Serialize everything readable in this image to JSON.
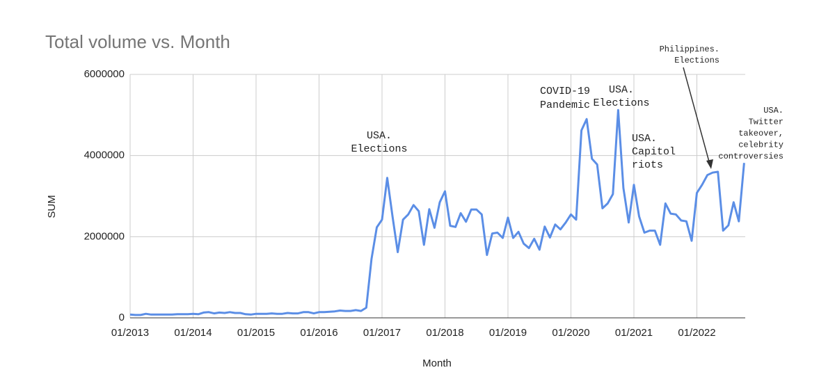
{
  "chart_data": {
    "type": "line",
    "title": "Total volume vs. Month",
    "x_label": "Month",
    "y_label": "SUM",
    "x": [
      "01/2013",
      "02/2013",
      "03/2013",
      "04/2013",
      "05/2013",
      "06/2013",
      "07/2013",
      "08/2013",
      "09/2013",
      "10/2013",
      "11/2013",
      "12/2013",
      "01/2014",
      "02/2014",
      "03/2014",
      "04/2014",
      "05/2014",
      "06/2014",
      "07/2014",
      "08/2014",
      "09/2014",
      "10/2014",
      "11/2014",
      "12/2014",
      "01/2015",
      "02/2015",
      "03/2015",
      "04/2015",
      "05/2015",
      "06/2015",
      "07/2015",
      "08/2015",
      "09/2015",
      "10/2015",
      "11/2015",
      "12/2015",
      "01/2016",
      "02/2016",
      "03/2016",
      "04/2016",
      "05/2016",
      "06/2016",
      "07/2016",
      "08/2016",
      "09/2016",
      "10/2016",
      "11/2016",
      "12/2016",
      "01/2017",
      "02/2017",
      "03/2017",
      "04/2017",
      "05/2017",
      "06/2017",
      "07/2017",
      "08/2017",
      "09/2017",
      "10/2017",
      "11/2017",
      "12/2017",
      "01/2018",
      "02/2018",
      "03/2018",
      "04/2018",
      "05/2018",
      "06/2018",
      "07/2018",
      "08/2018",
      "09/2018",
      "10/2018",
      "11/2018",
      "12/2018",
      "01/2019",
      "02/2019",
      "03/2019",
      "04/2019",
      "05/2019",
      "06/2019",
      "07/2019",
      "08/2019",
      "09/2019",
      "10/2019",
      "11/2019",
      "12/2019",
      "01/2020",
      "02/2020",
      "03/2020",
      "04/2020",
      "05/2020",
      "06/2020",
      "07/2020",
      "08/2020",
      "09/2020",
      "10/2020",
      "11/2020",
      "12/2020",
      "01/2021",
      "02/2021",
      "03/2021",
      "04/2021",
      "05/2021",
      "06/2021",
      "07/2021",
      "08/2021",
      "09/2021",
      "10/2021",
      "11/2021",
      "12/2021",
      "01/2022",
      "02/2022",
      "03/2022",
      "04/2022",
      "05/2022",
      "06/2022",
      "07/2022",
      "08/2022",
      "09/2022",
      "10/2022"
    ],
    "series": [
      {
        "name": "SUM",
        "color": "#5b8ee6",
        "values": [
          80000,
          70000,
          70000,
          100000,
          80000,
          80000,
          80000,
          80000,
          80000,
          90000,
          90000,
          90000,
          100000,
          90000,
          130000,
          140000,
          110000,
          130000,
          120000,
          140000,
          120000,
          120000,
          90000,
          80000,
          100000,
          100000,
          100000,
          110000,
          100000,
          100000,
          120000,
          110000,
          110000,
          140000,
          140000,
          110000,
          140000,
          140000,
          150000,
          160000,
          180000,
          170000,
          170000,
          190000,
          170000,
          250000,
          1450000,
          2230000,
          2420000,
          3450000,
          2500000,
          1620000,
          2420000,
          2550000,
          2780000,
          2630000,
          1800000,
          2680000,
          2220000,
          2850000,
          3120000,
          2270000,
          2240000,
          2580000,
          2370000,
          2670000,
          2670000,
          2550000,
          1550000,
          2080000,
          2100000,
          1970000,
          2470000,
          1970000,
          2120000,
          1830000,
          1720000,
          1950000,
          1680000,
          2250000,
          1980000,
          2300000,
          2180000,
          2350000,
          2550000,
          2420000,
          4620000,
          4900000,
          3920000,
          3780000,
          2700000,
          2820000,
          3050000,
          5120000,
          3200000,
          2350000,
          3280000,
          2500000,
          2100000,
          2150000,
          2150000,
          1800000,
          2820000,
          2570000,
          2550000,
          2400000,
          2380000,
          1900000,
          3080000,
          3280000,
          3520000,
          3580000,
          3600000,
          2150000,
          2280000,
          2850000,
          2380000,
          3820000
        ]
      }
    ],
    "ylim": [
      0,
      6000000
    ],
    "yticks": [
      0,
      2000000,
      4000000,
      6000000
    ],
    "grid": true,
    "annotations": [
      {
        "lines": [
          "USA.",
          "Elections"
        ]
      },
      {
        "lines": [
          "COVID-19",
          "Pandemic"
        ]
      },
      {
        "lines": [
          "USA.",
          "Elections"
        ]
      },
      {
        "lines": [
          "USA.",
          "Capitol",
          "riots"
        ]
      },
      {
        "lines": [
          "Philippines.",
          "Elections"
        ]
      },
      {
        "lines": [
          "USA.",
          "Twitter",
          "takeover,",
          "celebrity",
          "controversies"
        ]
      }
    ]
  }
}
